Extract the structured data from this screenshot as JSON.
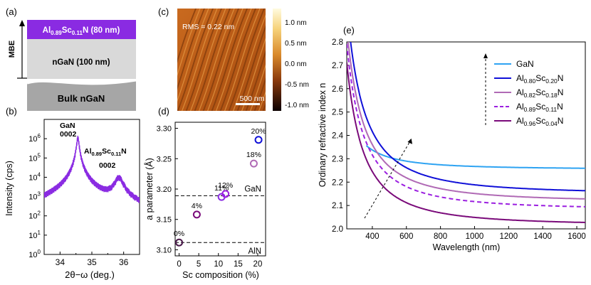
{
  "panel_labels": {
    "a": "(a)",
    "b": "(b)",
    "c": "(c)",
    "d": "(d)",
    "e": "(e)"
  },
  "colors": {
    "alsc_purple": "#8a2be2",
    "ngan_gray": "#d9d9d9",
    "bulk_gray": "#a6a6a6",
    "xrd_line": "#8a2be2",
    "gan": "#2ea3f2",
    "al80": "#1010d8",
    "al82": "#b06ab5",
    "al89": "#9b1fe0",
    "al96": "#7a0a7a"
  },
  "structure": {
    "mbe_label": "MBE",
    "layers": [
      {
        "label_main": "Al",
        "sub1": "0.89",
        "mid": "Sc",
        "sub2": "0.11",
        "tail": "N (80 nm)"
      },
      {
        "label": "nGaN (100 nm)"
      },
      {
        "label": "Bulk nGaN"
      }
    ]
  },
  "afm": {
    "rms_label": "RMS = 0.22 nm",
    "scale_label": "500 nm",
    "colorbar_ticks": [
      "1.0 nm",
      "0.5 nm",
      "0.0 nm",
      "-0.5 nm",
      "-1.0 nm"
    ]
  },
  "chart_data": [
    {
      "id": "xrd",
      "type": "line",
      "title": "",
      "xlabel": "2θ−ω (deg.)",
      "ylabel": "Intensity (cps)",
      "yscale": "log",
      "xlim": [
        33.5,
        36.5
      ],
      "ylim_exp": [
        0,
        7
      ],
      "xticks": [
        34,
        35,
        36
      ],
      "ytick_labels": [
        {
          "base": "10",
          "exp": "0"
        },
        {
          "base": "10",
          "exp": "1"
        },
        {
          "base": "10",
          "exp": "2"
        },
        {
          "base": "10",
          "exp": "3"
        },
        {
          "base": "10",
          "exp": "4"
        },
        {
          "base": "10",
          "exp": "5"
        },
        {
          "base": "10",
          "exp": "6"
        }
      ],
      "peaks": [
        {
          "name": "GaN",
          "position": 34.56,
          "log_peak": 6.05,
          "width": 0.035
        },
        {
          "name": "AlScN",
          "position": 35.85,
          "log_peak": 3.95,
          "width": 0.12
        }
      ],
      "annotations": {
        "gan": {
          "line1": "GaN",
          "line2": "0002"
        },
        "alscn": {
          "p1": "Al",
          "s1": "0.89",
          "p2": "Sc",
          "s2": "0.11",
          "p3": "N",
          "line2": "0002"
        }
      }
    },
    {
      "id": "lattice",
      "type": "scatter",
      "xlabel": "Sc composition (%)",
      "ylabel": "a parameter (Å)",
      "xlim": [
        -1,
        22
      ],
      "ylim": [
        3.09,
        3.31
      ],
      "xticks": [
        0,
        5,
        10,
        15,
        20
      ],
      "yticks": [
        3.1,
        3.15,
        3.2,
        3.25,
        3.3
      ],
      "ytick_labels": [
        "3.10",
        "3.15",
        "3.20",
        "3.25",
        "3.30"
      ],
      "reference_lines": [
        {
          "name": "GaN",
          "value": 3.189
        },
        {
          "name": "AlN",
          "value": 3.112
        }
      ],
      "points": [
        {
          "x": 0,
          "y": 3.112,
          "label": "0%",
          "color": "#4b1a4b"
        },
        {
          "x": 4.5,
          "y": 3.158,
          "label": "4%",
          "color": "#7a0a7a"
        },
        {
          "x": 10.8,
          "y": 3.187,
          "label": "11%",
          "color": "#8a2be2"
        },
        {
          "x": 11.8,
          "y": 3.192,
          "label": "12%",
          "color": "#9b1fe0"
        },
        {
          "x": 19,
          "y": 3.242,
          "label": "18%",
          "color": "#b06ab5"
        },
        {
          "x": 20.2,
          "y": 3.281,
          "label": "20%",
          "color": "#1010d8"
        }
      ]
    },
    {
      "id": "refractive",
      "type": "line",
      "xlabel": "Wavelength (nm)",
      "ylabel": "Ordinary refractive index n",
      "xlim": [
        250,
        1650
      ],
      "ylim": [
        2.0,
        2.8
      ],
      "xticks": [
        400,
        600,
        800,
        1000,
        1200,
        1400,
        1600
      ],
      "yticks": [
        2.0,
        2.1,
        2.2,
        2.3,
        2.4,
        2.5,
        2.6,
        2.7,
        2.8
      ],
      "ytick_labels": [
        "2.0",
        "2.1",
        "2.2",
        "2.3",
        "2.4",
        "2.5",
        "2.6",
        "2.7",
        "2.8"
      ],
      "series": [
        {
          "name": "GaN",
          "x_start": 365,
          "n_inf": 2.255,
          "B": 12020,
          "dashed": false,
          "color": "#2ea3f2"
        },
        {
          "name": "Al0.80Sc0.20N",
          "x_start": 250,
          "n_inf": 2.149,
          "B": 38940,
          "dashed": false,
          "color": "#1010d8"
        },
        {
          "name": "Al0.82Sc0.18N",
          "x_start": 250,
          "n_inf": 2.115,
          "B": 35780,
          "dashed": false,
          "color": "#b06ab5"
        },
        {
          "name": "Al0.89Sc0.11N",
          "x_start": 250,
          "n_inf": 2.082,
          "B": 34120,
          "dashed": true,
          "color": "#9b1fe0"
        },
        {
          "name": "Al0.96Sc0.04N",
          "x_start": 250,
          "n_inf": 2.015,
          "B": 33520,
          "dashed": false,
          "color": "#7a0a7a"
        }
      ],
      "legend": [
        {
          "p": "GaN",
          "s": "",
          "p2": "",
          "s2": "",
          "p3": ""
        },
        {
          "p": "Al",
          "s": "0.80",
          "p2": "Sc",
          "s2": "0.20",
          "p3": "N"
        },
        {
          "p": "Al",
          "s": "0.82",
          "p2": "Sc",
          "s2": "0.18",
          "p3": "N"
        },
        {
          "p": "Al",
          "s": "0.89",
          "p2": "Sc",
          "s2": "0.11",
          "p3": "N"
        },
        {
          "p": "Al",
          "s": "0.96",
          "p2": "Sc",
          "s2": "0.04",
          "p3": "N"
        }
      ]
    }
  ]
}
